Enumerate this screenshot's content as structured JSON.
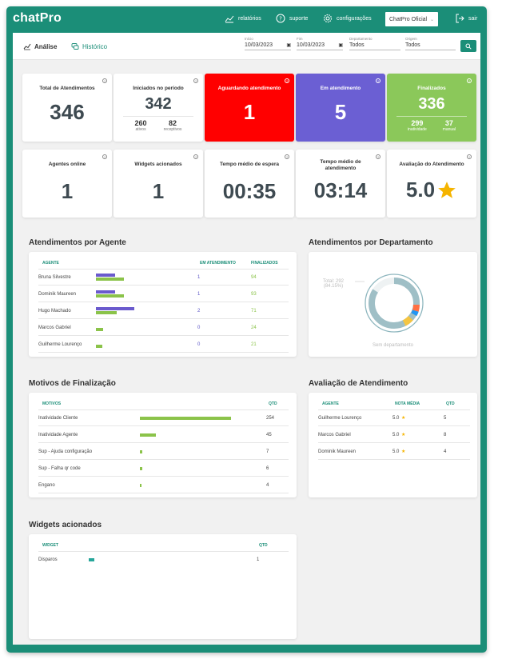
{
  "app": {
    "logo": "chatPro"
  },
  "nav": {
    "reports": "relatórios",
    "support": "suporte",
    "settings": "configurações",
    "account": "ChatPro Oficial",
    "logout": "sair"
  },
  "tabs": {
    "analysis": "Análise",
    "history": "Histórico"
  },
  "filters": {
    "start_label": "Início",
    "start_value": "10/03/2023",
    "end_label": "Fim",
    "end_value": "10/03/2023",
    "department_label": "Departamento",
    "department_value": "Todos",
    "origin_label": "Origem",
    "origin_value": "Todos"
  },
  "stats": {
    "total": {
      "title": "Total de Atendimentos",
      "value": "346"
    },
    "started": {
      "title": "Iniciados no período",
      "value": "342",
      "a_value": "260",
      "a_label": "ativos",
      "b_value": "82",
      "b_label": "receptivos"
    },
    "waiting": {
      "title": "Aguardando atendimento",
      "value": "1",
      "color": "#ff0000"
    },
    "in_service": {
      "title": "Em atendimento",
      "value": "5",
      "color": "#6b5fd3"
    },
    "finished": {
      "title": "Finalizados",
      "value": "336",
      "a_value": "299",
      "a_label": "inatividade",
      "b_value": "37",
      "b_label": "manual",
      "color": "#8bc85a"
    },
    "agents_online": {
      "title": "Agentes online",
      "value": "1"
    },
    "widgets": {
      "title": "Widgets acionados",
      "value": "1"
    },
    "wait_time": {
      "title": "Tempo médio de espera",
      "value": "00:35"
    },
    "service_time": {
      "title": "Tempo médio de atendimento",
      "value": "03:14"
    },
    "rating": {
      "title": "Avaliação do Atendimento",
      "value": "5.0"
    }
  },
  "agents_section": {
    "title": "Atendimentos por Agente",
    "headers": [
      "AGENTE",
      "EM ATENDIMENTO",
      "FINALIZADOS"
    ],
    "rows": [
      {
        "name": "Bruna Silvestre",
        "in_service": "1",
        "finished": "94"
      },
      {
        "name": "Dominik Maureen",
        "in_service": "1",
        "finished": "93"
      },
      {
        "name": "Hugo Machado",
        "in_service": "2",
        "finished": "71"
      },
      {
        "name": "Marcos Gabriel",
        "in_service": "0",
        "finished": "24"
      },
      {
        "name": "Guilherme Lourenço",
        "in_service": "0",
        "finished": "21"
      }
    ]
  },
  "department_section": {
    "title": "Atendimentos por Departamento",
    "total_label": "Total: 292",
    "total_pct": "(84.15%)",
    "caption": "Sem departamento",
    "main_share": 0.8415,
    "main_color": "#9fbfc6"
  },
  "reasons_section": {
    "title": "Motivos de Finalização",
    "headers": [
      "MOTIVOS",
      "QTD"
    ],
    "rows": [
      {
        "reason": "Inatividade Cliente",
        "qty": "254",
        "value": 254
      },
      {
        "reason": "Inatividade Agente",
        "qty": "45",
        "value": 45
      },
      {
        "reason": "Sup - Ajuda configuração",
        "qty": "7",
        "value": 7
      },
      {
        "reason": "Sup - Falha qr code",
        "qty": "6",
        "value": 6
      },
      {
        "reason": "Engano",
        "qty": "4",
        "value": 4
      }
    ]
  },
  "rating_section": {
    "title": "Avaliação de Atendimento",
    "headers": [
      "AGENTE",
      "NOTA MÉDIA",
      "QTD"
    ],
    "rows": [
      {
        "agent": "Guilherme Lourenço",
        "score": "5.0",
        "qty": "5"
      },
      {
        "agent": "Marcos Gabriel",
        "score": "5.0",
        "qty": "8"
      },
      {
        "agent": "Dominik Maureen",
        "score": "5.0",
        "qty": "4"
      }
    ]
  },
  "widgets_section": {
    "title": "Widgets acionados",
    "headers": [
      "WIDGET",
      "QTD"
    ],
    "rows": [
      {
        "widget": "Disparos",
        "qty": "1"
      }
    ]
  }
}
